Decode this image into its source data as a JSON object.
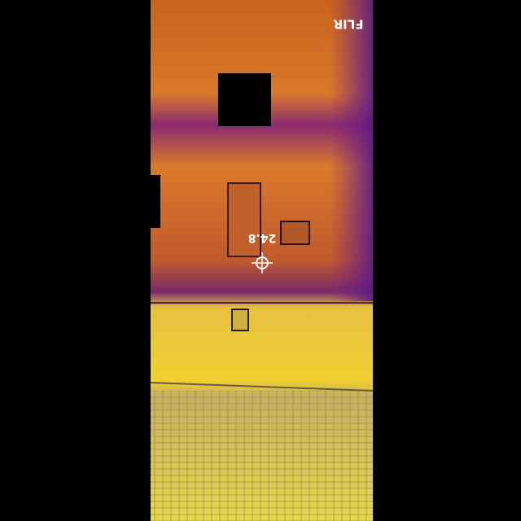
{
  "overlay": {
    "logo": "FLIR",
    "temperature": "24.8"
  }
}
